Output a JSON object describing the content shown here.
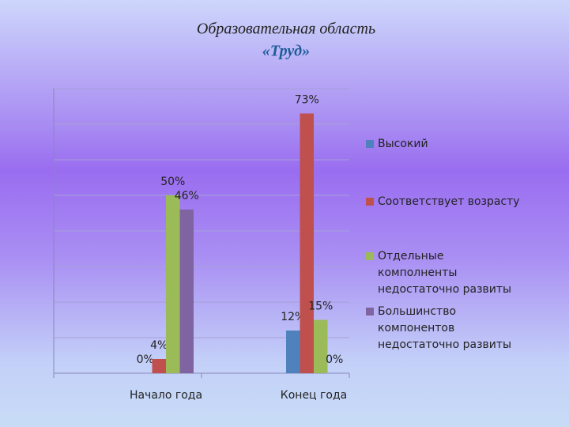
{
  "chart_data": {
    "type": "bar",
    "title": "Образовательная область",
    "subtitle": "«Труд»",
    "categories": [
      "Начало года",
      "Конец года"
    ],
    "series": [
      {
        "name": "Высокий",
        "color": "#4f81bd",
        "values": [
          0,
          12
        ],
        "value_labels": [
          "0%",
          "12%"
        ]
      },
      {
        "name": "Соответствует возрасту",
        "color": "#c0504d",
        "values": [
          4,
          73
        ],
        "value_labels": [
          "4%",
          "73%"
        ]
      },
      {
        "name": "Отдельные комполненты недостаточно развиты",
        "color": "#9bbb59",
        "values": [
          50,
          15
        ],
        "value_labels": [
          "50%",
          "15%"
        ]
      },
      {
        "name": "Большинство компонентов недостаточно развиты",
        "color": "#8064a2",
        "values": [
          46,
          0
        ],
        "value_labels": [
          "46%",
          "0%"
        ]
      }
    ],
    "ylim": [
      0,
      80
    ],
    "yticks": [
      0,
      10,
      20,
      30,
      40,
      50,
      60,
      70,
      80
    ],
    "grid": true,
    "legend": "right"
  }
}
